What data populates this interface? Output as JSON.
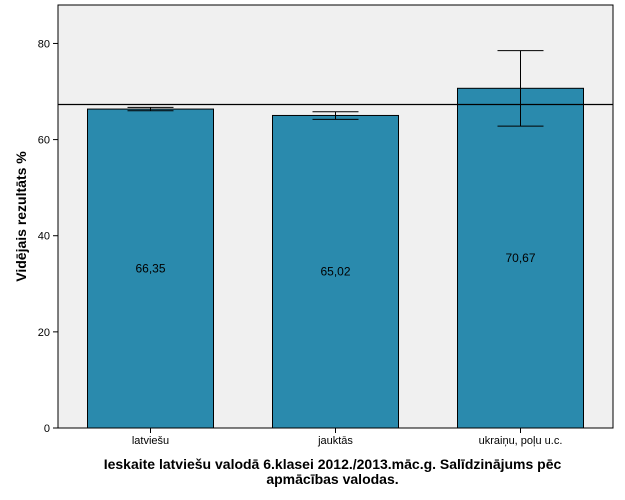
{
  "chart_data": {
    "type": "bar",
    "title": "",
    "xlabel_lines": [
      "Ieskaite latviešu valodā 6.klasei 2012./2013.māc.g. Salīdzinājums pēc",
      "apmācības valodas."
    ],
    "ylabel": "Vidējais rezultāts %",
    "categories": [
      "latviešu",
      "jauktās",
      "ukraiņu, poļu u.c."
    ],
    "values": [
      66.35,
      65.02,
      70.67
    ],
    "value_labels": [
      "66,35",
      "65,02",
      "70,67"
    ],
    "error_low": [
      66.0,
      64.2,
      62.8
    ],
    "error_high": [
      66.7,
      65.8,
      78.5
    ],
    "reference_line": 67.3,
    "ylim": [
      0,
      88
    ],
    "yticks": [
      0,
      20,
      40,
      60,
      80
    ],
    "grid": false,
    "colors": {
      "bar": "#2a8aad",
      "plot_background": "#f0f0f0",
      "outline": "#000000"
    }
  }
}
